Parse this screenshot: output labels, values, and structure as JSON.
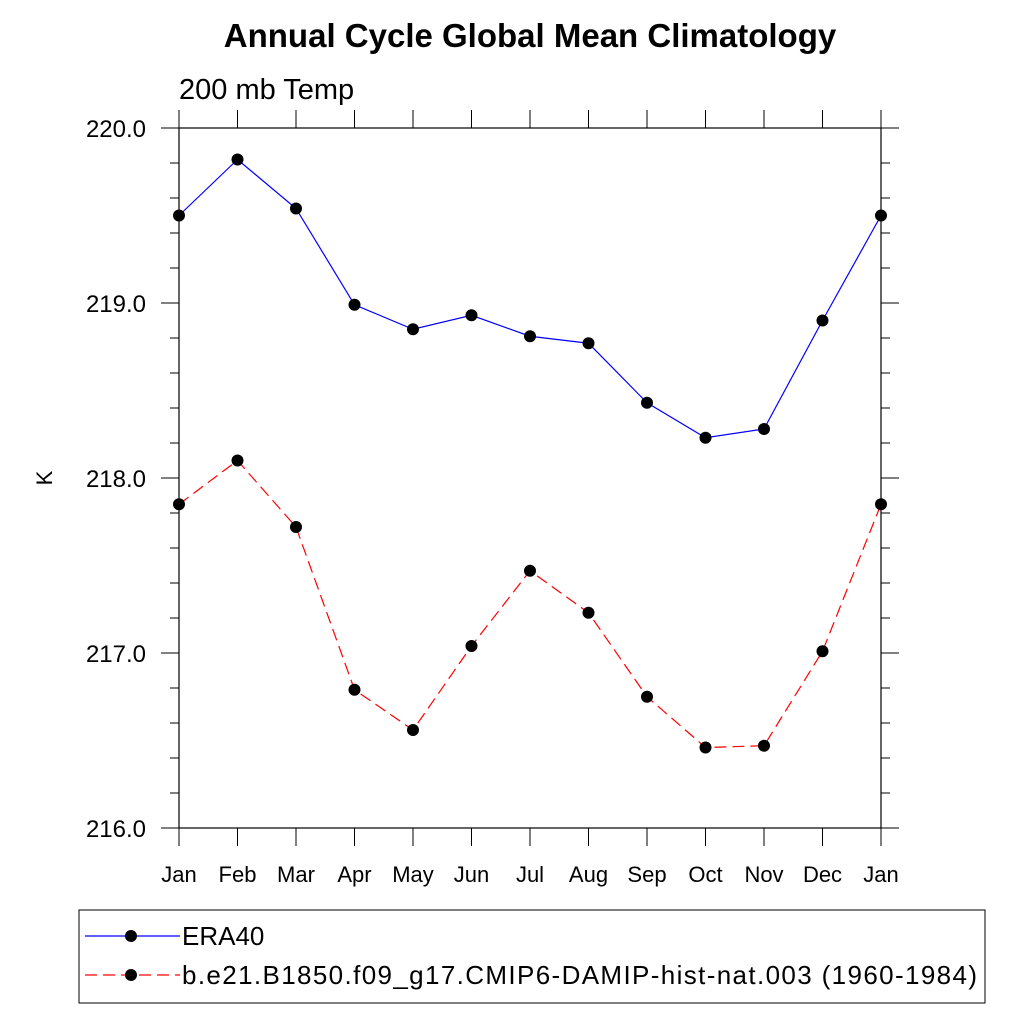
{
  "chart_data": {
    "type": "line",
    "title": "Annual Cycle Global Mean Climatology",
    "subtitle": "200 mb Temp",
    "xlabel": "",
    "ylabel": "K",
    "categories": [
      "Jan",
      "Feb",
      "Mar",
      "Apr",
      "May",
      "Jun",
      "Jul",
      "Aug",
      "Sep",
      "Oct",
      "Nov",
      "Dec",
      "Jan"
    ],
    "ylim": [
      216.0,
      220.0
    ],
    "yticks": [
      "216.0",
      "217.0",
      "218.0",
      "219.0",
      "220.0"
    ],
    "y_minor_step": 0.2,
    "grid": false,
    "legend_position": "bottom",
    "series": [
      {
        "name": "ERA40",
        "color": "#0000ff",
        "line_style": "solid",
        "marker": "filled-circle",
        "values": [
          219.5,
          219.82,
          219.54,
          218.99,
          218.85,
          218.93,
          218.81,
          218.77,
          218.43,
          218.23,
          218.28,
          218.9,
          219.5
        ]
      },
      {
        "name": "b.e21.B1850.f09_g17.CMIP6-DAMIP-hist-nat.003 (1960-1984)",
        "color": "#ff0000",
        "line_style": "dashed",
        "marker": "filled-circle",
        "values": [
          217.85,
          218.1,
          217.72,
          216.79,
          216.56,
          217.04,
          217.47,
          217.23,
          216.75,
          216.46,
          216.47,
          217.01,
          217.85
        ]
      }
    ]
  }
}
